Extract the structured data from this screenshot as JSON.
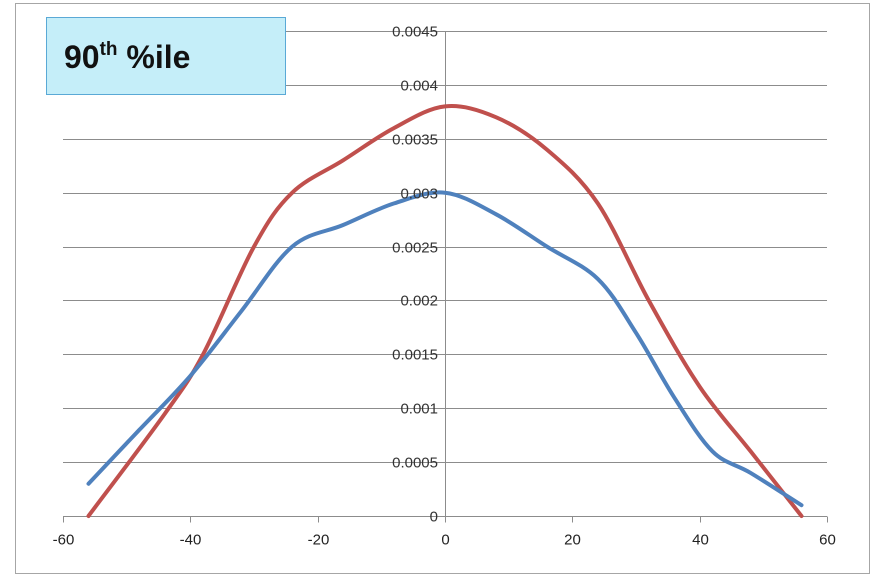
{
  "chart_data": {
    "type": "line",
    "title_main": "90",
    "title_sup": "th",
    "title_rest": " %ile",
    "xlim": [
      -60,
      60
    ],
    "ylim": [
      0,
      0.0045
    ],
    "x_ticks": [
      -60,
      -40,
      -20,
      0,
      20,
      40,
      60
    ],
    "x_tick_labels": [
      "-60",
      "-40",
      "-20",
      "0",
      "20",
      "40",
      "60"
    ],
    "y_ticks": [
      0,
      0.0005,
      0.001,
      0.0015,
      0.002,
      0.0025,
      0.003,
      0.0035,
      0.004,
      0.0045
    ],
    "y_tick_labels": [
      "0",
      "0.0005",
      "0.001",
      "0.0015",
      "0.002",
      "0.0025",
      "0.003",
      "0.0035",
      "0.004",
      "0.0045"
    ],
    "grid": true,
    "legend": false,
    "series": [
      {
        "color": "#c0504d",
        "x": [
          -56,
          -44,
          -38,
          -30,
          -24,
          -16,
          -8,
          0,
          8,
          16,
          24,
          32,
          40,
          48,
          56
        ],
        "y": [
          0,
          0.00095,
          0.0015,
          0.0025,
          0.003,
          0.0033,
          0.0036,
          0.0038,
          0.0037,
          0.0034,
          0.0029,
          0.002,
          0.0012,
          0.0006,
          0.0
        ]
      },
      {
        "color": "#4f81bd",
        "x": [
          -56,
          -48,
          -40,
          -32,
          -24,
          -16,
          -8,
          0,
          8,
          16,
          24,
          30,
          36,
          42,
          48,
          56
        ],
        "y": [
          0.0003,
          0.0008,
          0.0013,
          0.0019,
          0.0025,
          0.0027,
          0.0029,
          0.003,
          0.0028,
          0.0025,
          0.0022,
          0.0017,
          0.0011,
          0.0006,
          0.0004,
          0.0001
        ]
      }
    ]
  }
}
